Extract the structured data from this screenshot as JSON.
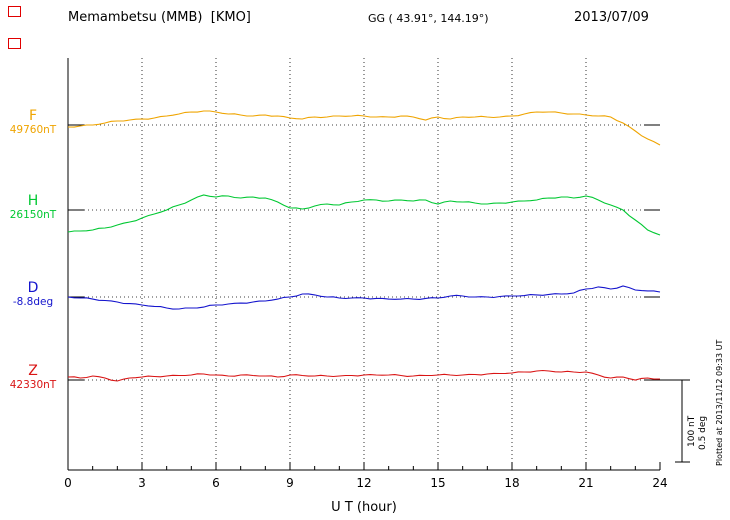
{
  "header": {
    "station_title": "Memambetsu (MMB)  [KMO]",
    "coordinates": "GG ( 43.91°, 144.19°)",
    "date": "2013/07/09"
  },
  "footer_note": "Plotted at 2013/11/12 09:33 UT",
  "chart_data": {
    "type": "line",
    "title": "Memambetsu (MMB) [KMO] magnetogram",
    "date": "2013/07/09",
    "xlabel": "U T (hour)",
    "x_range": [
      0,
      24
    ],
    "x_ticks": [
      0,
      3,
      6,
      9,
      12,
      15,
      18,
      21,
      24
    ],
    "x_step_hours": 0.5,
    "grid": "dotted vertical lines every 3 hours; dotted horizontal baseline for each component",
    "legend_position": "left",
    "scale_bar": {
      "nt_label": "100 nT",
      "deg_label": "0.5 deg",
      "nT_per_bar": 100,
      "deg_per_bar": 0.5
    },
    "series": [
      {
        "id": "F",
        "label": "F",
        "baseline_label": "49760nT",
        "baseline_value": 49760,
        "unit": "nT",
        "color": "#efa400",
        "offsets": [
          -2.5,
          -1.3,
          0,
          2.5,
          5,
          6.3,
          7.5,
          8.8,
          11.3,
          13.8,
          16.3,
          17.5,
          16.3,
          13.8,
          12.5,
          11.3,
          12.5,
          11.3,
          8.8,
          7.5,
          10,
          10,
          11.3,
          11.3,
          11.3,
          10,
          10,
          11.3,
          10,
          6.3,
          10,
          7.5,
          10,
          10,
          10,
          10,
          11.3,
          13.8,
          16.3,
          16.3,
          15,
          13.8,
          12.5,
          11.3,
          10,
          2.5,
          -7.5,
          -17.5,
          -25
        ]
      },
      {
        "id": "H",
        "label": "H",
        "baseline_label": "26150nT",
        "baseline_value": 26150,
        "unit": "nT",
        "color": "#00c832",
        "offsets": [
          -27.5,
          -26.3,
          -25,
          -22.5,
          -18.8,
          -15,
          -10,
          -5,
          0,
          6.3,
          12.5,
          18.8,
          16.3,
          17.5,
          15,
          16.3,
          15,
          10,
          2.5,
          1.3,
          5,
          7.5,
          6.3,
          10,
          12.5,
          12.5,
          11.3,
          12.5,
          11.3,
          12.5,
          7.5,
          11.3,
          10,
          8.8,
          7.5,
          8.8,
          10,
          11.3,
          12.5,
          15,
          16.3,
          15,
          17.5,
          12.5,
          6.3,
          0,
          -12.5,
          -25,
          -31.3
        ]
      },
      {
        "id": "D",
        "label": "D",
        "baseline_label": "-8.8deg",
        "baseline_value": -8.8,
        "unit": "deg",
        "color": "#1414cd",
        "offsets": [
          0,
          -0.006,
          -0.013,
          -0.022,
          -0.031,
          -0.041,
          -0.05,
          -0.059,
          -0.069,
          -0.075,
          -0.069,
          -0.063,
          -0.05,
          -0.044,
          -0.038,
          -0.031,
          -0.025,
          -0.013,
          0,
          0.019,
          0.013,
          0,
          -0.006,
          -0.006,
          -0.006,
          -0.009,
          -0.013,
          -0.013,
          -0.013,
          -0.009,
          -0.006,
          0.006,
          0.006,
          0,
          0,
          0.003,
          0.006,
          0.009,
          0.013,
          0.016,
          0.019,
          0.025,
          0.05,
          0.063,
          0.05,
          0.069,
          0.044,
          0.038,
          0.031
        ]
      },
      {
        "id": "Z",
        "label": "Z",
        "baseline_label": "42330nT",
        "baseline_value": 42330,
        "unit": "nT",
        "color": "#d91414",
        "offsets": [
          3.8,
          2.5,
          5,
          2.5,
          -1.3,
          2.5,
          3.8,
          4.4,
          5,
          5.6,
          6.3,
          7.5,
          6.3,
          5,
          6.3,
          5.6,
          5,
          3.8,
          6.3,
          5.6,
          5,
          5,
          5,
          5.6,
          6.3,
          6.3,
          6.3,
          5.6,
          5,
          5.6,
          6.3,
          6.3,
          6.3,
          6.9,
          7.5,
          8.1,
          8.8,
          10,
          11.3,
          11.3,
          10,
          10,
          10,
          6.3,
          2.5,
          3.8,
          0,
          2.5,
          1.3
        ]
      }
    ]
  }
}
